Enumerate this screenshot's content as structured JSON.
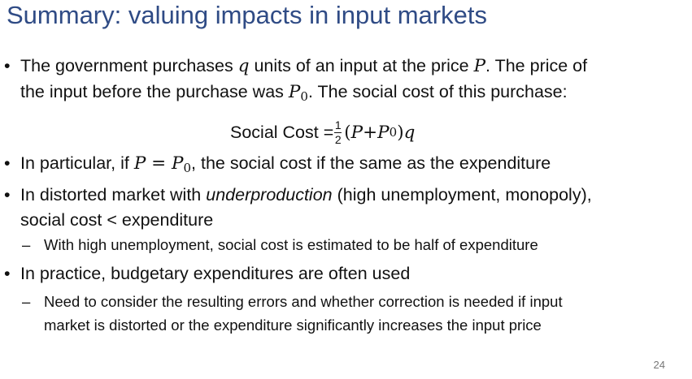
{
  "title": "Summary: valuing impacts in input markets",
  "bullets": {
    "b1": {
      "l1_a": "The government purchases ",
      "l1_q": "q",
      "l1_b": " units of an input at the price ",
      "l1_P": "P",
      "l1_c": ". The price of",
      "l2_a": "the input before the purchase was ",
      "l2_P": "P",
      "l2_sub": "0",
      "l2_b": ". The social cost of this purchase:"
    },
    "formula": {
      "label": "Social Cost =",
      "num": "1",
      "den": "2",
      "open": "(",
      "P": "P",
      "plus": " + ",
      "P0": "P",
      "P0_sub": "0",
      "close": ")",
      "q": "q"
    },
    "b2": {
      "a": "In particular, if ",
      "P": "P",
      "eq": " = ",
      "P0": "P",
      "P0_sub": "0",
      "b": ", the social cost if the same as the expenditure"
    },
    "b3": {
      "a": "In distorted market with ",
      "em": "underproduction",
      "b": " (high unemployment, monopoly),",
      "l2": "social cost < expenditure"
    },
    "b3_sub": "With high unemployment, social cost is estimated to be half of expenditure",
    "b4": "In practice, budgetary expenditures are often used",
    "b4_sub": {
      "l1": "Need to consider the resulting errors and whether correction is needed if input",
      "l2": "market is distorted or the expenditure significantly increases the input price"
    }
  },
  "symbols": {
    "bullet": "•",
    "dash": "–"
  },
  "page_number": "24",
  "colors": {
    "title": "#2f4b85",
    "text": "#111111",
    "page_number": "#777777"
  }
}
